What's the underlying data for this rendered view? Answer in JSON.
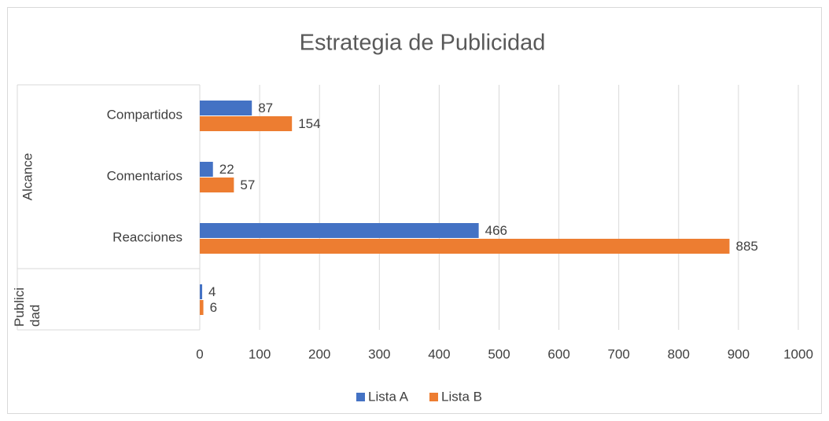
{
  "chart_data": {
    "type": "bar",
    "orientation": "horizontal",
    "title": "Estrategia de Publicidad",
    "category_groups": [
      {
        "name": "Alcance",
        "categories": [
          "Compartidos",
          "Comentarios",
          "Reacciones"
        ]
      },
      {
        "name": "Publicidad",
        "categories": [
          null
        ]
      }
    ],
    "series": [
      {
        "name": "Lista A",
        "color": "#4472c4",
        "values": [
          87,
          22,
          466,
          4
        ]
      },
      {
        "name": "Lista B",
        "color": "#ed7d31",
        "values": [
          154,
          57,
          885,
          6
        ]
      }
    ],
    "xlim": [
      0,
      1000
    ],
    "xticks": [
      0,
      100,
      200,
      300,
      400,
      500,
      600,
      700,
      800,
      900,
      1000
    ],
    "grid": true,
    "legend": "bottom"
  }
}
